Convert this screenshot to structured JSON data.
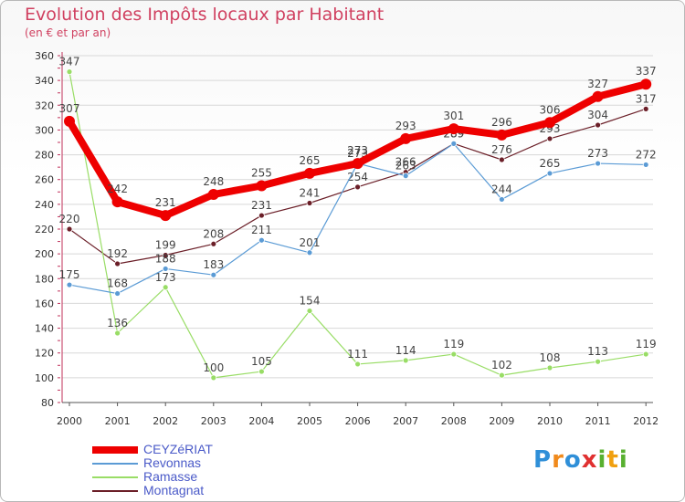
{
  "header": {
    "title": "Evolution des Impôts locaux par Habitant",
    "subtitle": "(en € et par an)"
  },
  "colors": {
    "accent": "#d04060",
    "axis": "#c0305a",
    "grid": "#d8d8d8",
    "legend_text": "#4a5ac8"
  },
  "logo": {
    "letters": [
      "P",
      "r",
      "o",
      "x",
      "i",
      "t",
      "i"
    ],
    "colors": [
      "#2f8fd8",
      "#f08a1c",
      "#2f8fd8",
      "#e03030",
      "#58b030",
      "#f0a010",
      "#58b030"
    ]
  },
  "chart_data": {
    "type": "line",
    "title": "Evolution des Impôts locaux par Habitant",
    "subtitle": "(en € et par an)",
    "xlabel": "",
    "ylabel": "",
    "categories": [
      "2000",
      "2001",
      "2002",
      "2003",
      "2004",
      "2005",
      "2006",
      "2007",
      "2008",
      "2009",
      "2010",
      "2011",
      "2012"
    ],
    "ylim": [
      80,
      360
    ],
    "yticks": [
      80,
      100,
      120,
      140,
      160,
      180,
      200,
      220,
      240,
      260,
      280,
      300,
      320,
      340,
      360
    ],
    "grid": "horizontal",
    "legend_position": "bottom-left",
    "series": [
      {
        "name": "CEYZéRIAT",
        "color": "#ee0000",
        "values": [
          307,
          242,
          231,
          248,
          255,
          265,
          273,
          293,
          301,
          296,
          306,
          327,
          337
        ]
      },
      {
        "name": "Revonnas",
        "color": "#5b9bd5",
        "values": [
          175,
          168,
          188,
          183,
          211,
          201,
          273,
          263,
          289,
          244,
          265,
          273,
          272
        ]
      },
      {
        "name": "Ramasse",
        "color": "#99dd66",
        "values": [
          347,
          136,
          173,
          100,
          105,
          154,
          111,
          114,
          119,
          102,
          108,
          113,
          119
        ]
      },
      {
        "name": "Montagnat",
        "color": "#6b1f28",
        "values": [
          220,
          192,
          199,
          208,
          231,
          241,
          254,
          266,
          289,
          276,
          293,
          304,
          317
        ]
      }
    ]
  }
}
